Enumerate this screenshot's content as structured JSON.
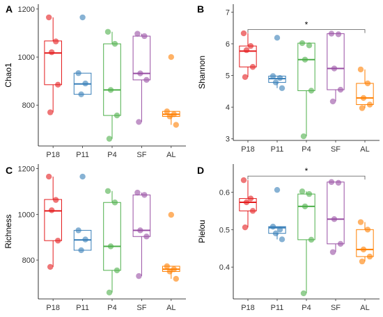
{
  "colors": {
    "P18": "#e41a1c",
    "P11": "#377eb8",
    "P4": "#4daf4a",
    "SF": "#984ea3",
    "AL": "#ff7f00"
  },
  "chart_data": [
    {
      "type": "box",
      "panel": "A",
      "ylabel": "Chao1",
      "ylim": [
        630,
        1220
      ],
      "yticks": [
        800,
        1000,
        1200
      ],
      "categories": [
        "P18",
        "P11",
        "P4",
        "SF",
        "AL"
      ],
      "boxes": [
        {
          "q1": 885,
          "median": 1017,
          "q3": 1067,
          "wlo": 770,
          "whi": 1165,
          "points": [
            1165,
            1065,
            1020,
            885,
            770
          ],
          "outliers": []
        },
        {
          "q1": 845,
          "median": 888,
          "q3": 933,
          "wlo": 845,
          "whi": 933,
          "points": [
            933,
            890,
            845
          ],
          "outliers": [
            1165
          ]
        },
        {
          "q1": 757,
          "median": 863,
          "q3": 1055,
          "wlo": 660,
          "whi": 1105,
          "points": [
            1105,
            1055,
            863,
            757,
            660
          ],
          "outliers": []
        },
        {
          "q1": 905,
          "median": 932,
          "q3": 1087,
          "wlo": 730,
          "whi": 1097,
          "points": [
            1097,
            1087,
            932,
            905,
            730
          ],
          "outliers": []
        },
        {
          "q1": 753,
          "median": 762,
          "q3": 774,
          "wlo": 718,
          "whi": 774,
          "points": [
            774,
            762,
            753,
            718
          ],
          "outliers": [
            1000
          ]
        }
      ]
    },
    {
      "type": "box",
      "panel": "B",
      "ylabel": "Shannon",
      "ylim": [
        2.95,
        7.25
      ],
      "yticks": [
        3,
        4,
        5,
        6,
        7
      ],
      "categories": [
        "P18",
        "P11",
        "P4",
        "SF",
        "AL"
      ],
      "significance": {
        "from": "P18",
        "to": "AL",
        "label": "*",
        "y": 6.45
      },
      "boxes": [
        {
          "q1": 5.27,
          "median": 5.77,
          "q3": 5.93,
          "wlo": 4.95,
          "whi": 6.33,
          "points": [
            6.33,
            5.93,
            5.8,
            5.27,
            4.95
          ],
          "outliers": []
        },
        {
          "q1": 4.78,
          "median": 4.9,
          "q3": 4.98,
          "wlo": 4.6,
          "whi": 4.98,
          "points": [
            4.98,
            4.92,
            4.78,
            4.6
          ],
          "outliers": [
            6.19
          ]
        },
        {
          "q1": 4.52,
          "median": 5.5,
          "q3": 6.02,
          "wlo": 3.08,
          "whi": 6.02,
          "points": [
            6.02,
            5.95,
            5.5,
            4.52,
            3.08
          ],
          "outliers": []
        },
        {
          "q1": 4.55,
          "median": 5.22,
          "q3": 6.32,
          "wlo": 4.18,
          "whi": 6.32,
          "points": [
            6.32,
            6.3,
            5.22,
            4.55,
            4.18
          ],
          "outliers": []
        },
        {
          "q1": 4.08,
          "median": 4.29,
          "q3": 4.75,
          "wlo": 3.97,
          "whi": 5.19,
          "points": [
            5.19,
            4.75,
            4.29,
            4.08,
            3.97
          ],
          "outliers": []
        }
      ]
    },
    {
      "type": "box",
      "panel": "C",
      "ylabel": "Richness",
      "ylim": [
        630,
        1220
      ],
      "yticks": [
        800,
        1000,
        1200
      ],
      "categories": [
        "P18",
        "P11",
        "P4",
        "SF",
        "AL"
      ],
      "boxes": [
        {
          "q1": 885,
          "median": 1015,
          "q3": 1065,
          "wlo": 770,
          "whi": 1165,
          "points": [
            1165,
            1063,
            1018,
            885,
            770
          ],
          "outliers": []
        },
        {
          "q1": 843,
          "median": 888,
          "q3": 930,
          "wlo": 843,
          "whi": 930,
          "points": [
            930,
            890,
            843
          ],
          "outliers": [
            1165
          ]
        },
        {
          "q1": 755,
          "median": 860,
          "q3": 1052,
          "wlo": 658,
          "whi": 1102,
          "points": [
            1102,
            1052,
            860,
            755,
            658
          ],
          "outliers": []
        },
        {
          "q1": 903,
          "median": 930,
          "q3": 1085,
          "wlo": 730,
          "whi": 1095,
          "points": [
            1095,
            1085,
            930,
            903,
            730
          ],
          "outliers": []
        },
        {
          "q1": 750,
          "median": 760,
          "q3": 773,
          "wlo": 718,
          "whi": 773,
          "points": [
            773,
            760,
            750,
            718
          ],
          "outliers": [
            998
          ]
        }
      ]
    },
    {
      "type": "box",
      "panel": "D",
      "ylabel": "Pielou",
      "ylim": [
        0.315,
        0.675
      ],
      "yticks": [
        0.4,
        0.5,
        0.6
      ],
      "categories": [
        "P18",
        "P11",
        "P4",
        "SF",
        "AL"
      ],
      "significance": {
        "from": "P18",
        "to": "AL",
        "label": "*",
        "y": 0.643
      },
      "boxes": [
        {
          "q1": 0.55,
          "median": 0.573,
          "q3": 0.583,
          "wlo": 0.506,
          "whi": 0.632,
          "points": [
            0.632,
            0.583,
            0.573,
            0.55,
            0.506
          ],
          "outliers": []
        },
        {
          "q1": 0.49,
          "median": 0.505,
          "q3": 0.508,
          "wlo": 0.474,
          "whi": 0.508,
          "points": [
            0.508,
            0.5,
            0.49,
            0.474
          ],
          "outliers": [
            0.606
          ]
        },
        {
          "q1": 0.473,
          "median": 0.562,
          "q3": 0.595,
          "wlo": 0.33,
          "whi": 0.602,
          "points": [
            0.602,
            0.595,
            0.562,
            0.473,
            0.33
          ],
          "outliers": []
        },
        {
          "q1": 0.462,
          "median": 0.528,
          "q3": 0.627,
          "wlo": 0.44,
          "whi": 0.627,
          "points": [
            0.627,
            0.625,
            0.528,
            0.462,
            0.44
          ],
          "outliers": []
        },
        {
          "q1": 0.428,
          "median": 0.447,
          "q3": 0.5,
          "wlo": 0.415,
          "whi": 0.52,
          "points": [
            0.52,
            0.5,
            0.447,
            0.428,
            0.415
          ],
          "outliers": []
        }
      ]
    }
  ]
}
